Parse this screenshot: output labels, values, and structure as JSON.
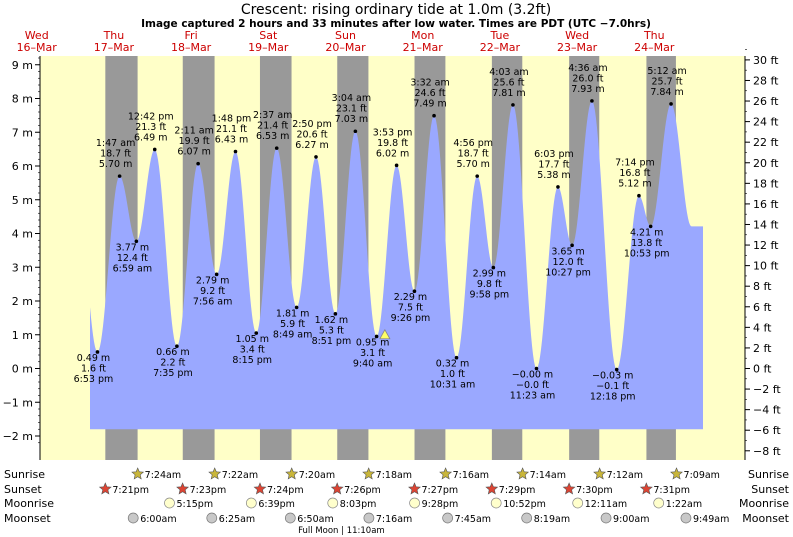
{
  "chart_data": {
    "type": "area",
    "title": "Crescent: rising  ordinary tide at 1.0m (3.2ft)",
    "subtitle": "Image captured 2 hours and 33 minutes after low water. Times are PDT (UTC −7.0hrs)",
    "x_unit": "days since 16-Mar 00:00 PDT",
    "ylim_m": [
      -2.4,
      9.6
    ],
    "y_ticks_m": [
      -2,
      -1,
      0,
      1,
      2,
      3,
      4,
      5,
      6,
      7,
      8,
      9
    ],
    "y_tick_labels_m": [
      "−2 m",
      "−1 m",
      "0 m",
      "1 m",
      "2 m",
      "3 m",
      "4 m",
      "5 m",
      "6 m",
      "7 m",
      "8 m",
      "9 m"
    ],
    "y_ticks_ft": [
      -8,
      -6,
      -4,
      -2,
      0,
      2,
      4,
      6,
      8,
      10,
      12,
      14,
      16,
      18,
      20,
      22,
      24,
      26,
      28,
      30
    ],
    "y_tick_labels_ft": [
      "−8 ft",
      "−6 ft",
      "−4 ft",
      "−2 ft",
      "0 ft",
      "2 ft",
      "4 ft",
      "6 ft",
      "8 ft",
      "10 ft",
      "12 ft",
      "14 ft",
      "16 ft",
      "18 ft",
      "20 ft",
      "22 ft",
      "24 ft",
      "26 ft",
      "28 ft",
      "30 ft"
    ],
    "days": [
      {
        "x": 0.0,
        "dow": "Wed",
        "date": "16–Mar"
      },
      {
        "x": 1.0,
        "dow": "Thu",
        "date": "17–Mar"
      },
      {
        "x": 2.0,
        "dow": "Fri",
        "date": "18–Mar"
      },
      {
        "x": 3.0,
        "dow": "Sat",
        "date": "19–Mar"
      },
      {
        "x": 4.0,
        "dow": "Sun",
        "date": "20–Mar"
      },
      {
        "x": 5.0,
        "dow": "Mon",
        "date": "21–Mar"
      },
      {
        "x": 6.0,
        "dow": "Tue",
        "date": "22–Mar"
      },
      {
        "x": 7.0,
        "dow": "Wed",
        "date": "23–Mar"
      },
      {
        "x": 8.0,
        "dow": "Thu",
        "date": "24–Mar"
      }
    ],
    "nights": [
      [
        0.889,
        1.307
      ],
      [
        1.892,
        2.304
      ],
      [
        2.892,
        3.301
      ],
      [
        3.893,
        4.297
      ],
      [
        4.894,
        5.294
      ],
      [
        5.896,
        6.29
      ],
      [
        6.897,
        7.287
      ],
      [
        7.898,
        8.28
      ]
    ],
    "tides": [
      {
        "x": 0.787,
        "m": 0.49,
        "time": "6:53 pm",
        "ft": "1.6 ft",
        "meters": "0.49 m",
        "type": "low"
      },
      {
        "x": 1.074,
        "m": 5.7,
        "time": "1:47 am",
        "ft": "18.7 ft",
        "meters": "5.70 m",
        "type": "high"
      },
      {
        "x": 1.291,
        "m": 3.77,
        "time": "6:59 am",
        "ft": "12.4 ft",
        "meters": "3.77 m",
        "type": "low"
      },
      {
        "x": 1.529,
        "m": 6.49,
        "time": "12:42 pm",
        "ft": "21.3 ft",
        "meters": "6.49 m",
        "type": "high"
      },
      {
        "x": 1.816,
        "m": 0.66,
        "time": "7:35 pm",
        "ft": "2.2 ft",
        "meters": "0.66 m",
        "type": "low"
      },
      {
        "x": 2.091,
        "m": 6.07,
        "time": "2:11 am",
        "ft": "19.9 ft",
        "meters": "6.07 m",
        "type": "high"
      },
      {
        "x": 2.331,
        "m": 2.79,
        "time": "7:56 am",
        "ft": "9.2 ft",
        "meters": "2.79 m",
        "type": "low"
      },
      {
        "x": 2.575,
        "m": 6.43,
        "time": "1:48 pm",
        "ft": "21.1 ft",
        "meters": "6.43 m",
        "type": "high"
      },
      {
        "x": 2.844,
        "m": 1.05,
        "time": "8:15 pm",
        "ft": "3.4 ft",
        "meters": "1.05 m",
        "type": "low"
      },
      {
        "x": 3.109,
        "m": 6.53,
        "time": "2:37 am",
        "ft": "21.4 ft",
        "meters": "6.53 m",
        "type": "high"
      },
      {
        "x": 3.367,
        "m": 1.81,
        "time": "8:49 am",
        "ft": "5.9 ft",
        "meters": "1.81 m",
        "type": "low"
      },
      {
        "x": 3.618,
        "m": 6.27,
        "time": "2:50 pm",
        "ft": "20.6 ft",
        "meters": "6.27 m",
        "type": "high"
      },
      {
        "x": 3.869,
        "m": 1.62,
        "time": "8:51 pm",
        "ft": "5.3 ft",
        "meters": "1.62 m",
        "type": "low"
      },
      {
        "x": 4.128,
        "m": 7.03,
        "time": "3:04 am",
        "ft": "23.1 ft",
        "meters": "7.03 m",
        "type": "high"
      },
      {
        "x": 4.403,
        "m": 0.95,
        "time": "9:40 am",
        "ft": "3.1 ft",
        "meters": "0.95 m",
        "type": "low"
      },
      {
        "x": 4.662,
        "m": 6.02,
        "time": "3:53 pm",
        "ft": "19.8 ft",
        "meters": "6.02 m",
        "type": "high"
      },
      {
        "x": 4.893,
        "m": 2.29,
        "time": "9:26 pm",
        "ft": "7.5 ft",
        "meters": "2.29 m",
        "type": "low"
      },
      {
        "x": 5.147,
        "m": 7.49,
        "time": "3:32 am",
        "ft": "24.6 ft",
        "meters": "7.49 m",
        "type": "high"
      },
      {
        "x": 5.438,
        "m": 0.32,
        "time": "10:31 am",
        "ft": "1.0 ft",
        "meters": "0.32 m",
        "type": "low"
      },
      {
        "x": 5.706,
        "m": 5.7,
        "time": "4:56 pm",
        "ft": "18.7 ft",
        "meters": "5.70 m",
        "type": "high"
      },
      {
        "x": 5.915,
        "m": 2.99,
        "time": "9:58 pm",
        "ft": "9.8 ft",
        "meters": "2.99 m",
        "type": "low"
      },
      {
        "x": 6.169,
        "m": 7.81,
        "time": "4:03 am",
        "ft": "25.6 ft",
        "meters": "7.81 m",
        "type": "high"
      },
      {
        "x": 6.474,
        "m": 0.0,
        "time": "11:23 am",
        "ft": "−0.0 ft",
        "meters": "−0.00 m",
        "type": "low"
      },
      {
        "x": 6.752,
        "m": 5.38,
        "time": "6:03 pm",
        "ft": "17.7 ft",
        "meters": "5.38 m",
        "type": "high"
      },
      {
        "x": 6.935,
        "m": 3.65,
        "time": "10:27 pm",
        "ft": "12.0 ft",
        "meters": "3.65 m",
        "type": "low"
      },
      {
        "x": 7.192,
        "m": 7.93,
        "time": "4:36 am",
        "ft": "26.0 ft",
        "meters": "7.93 m",
        "type": "high"
      },
      {
        "x": 7.513,
        "m": -0.03,
        "time": "12:18 pm",
        "ft": "−0.1 ft",
        "meters": "−0.03 m",
        "type": "low"
      },
      {
        "x": 7.801,
        "m": 5.12,
        "time": "7:14 pm",
        "ft": "16.8 ft",
        "meters": "5.12 m",
        "type": "high"
      },
      {
        "x": 7.953,
        "m": 4.21,
        "time": "10:53 pm",
        "ft": "13.8 ft",
        "meters": "4.21 m",
        "type": "low"
      },
      {
        "x": 8.217,
        "m": 7.84,
        "time": "5:12 am",
        "ft": "25.7 ft",
        "meters": "7.84 m",
        "type": "high"
      }
    ],
    "now": {
      "x": 4.51,
      "m": 1.0
    },
    "rows": {
      "sunrise_label": "Sunrise",
      "sunset_label": "Sunset",
      "moonrise_label": "Moonrise",
      "moonset_label": "Moonset"
    },
    "sunrise": [
      {
        "x": 1.308,
        "time": "7:24am"
      },
      {
        "x": 2.306,
        "time": "7:22am"
      },
      {
        "x": 3.303,
        "time": "7:20am"
      },
      {
        "x": 4.3,
        "time": "7:18am"
      },
      {
        "x": 5.297,
        "time": "7:16am"
      },
      {
        "x": 6.294,
        "time": "7:14am"
      },
      {
        "x": 7.292,
        "time": "7:12am"
      },
      {
        "x": 8.288,
        "time": "7:09am"
      }
    ],
    "sunset": [
      {
        "x": 0.889,
        "time": "7:21pm"
      },
      {
        "x": 1.89,
        "time": "7:23pm"
      },
      {
        "x": 2.892,
        "time": "7:24pm"
      },
      {
        "x": 3.892,
        "time": "7:26pm"
      },
      {
        "x": 4.894,
        "time": "7:27pm"
      },
      {
        "x": 5.895,
        "time": "7:29pm"
      },
      {
        "x": 6.896,
        "time": "7:30pm"
      },
      {
        "x": 7.897,
        "time": "7:31pm"
      }
    ],
    "moonrise": [
      {
        "x": 1.72,
        "time": "5:15pm"
      },
      {
        "x": 2.78,
        "time": "6:39pm"
      },
      {
        "x": 3.835,
        "time": "8:03pm"
      },
      {
        "x": 4.895,
        "time": "9:28pm"
      },
      {
        "x": 5.952,
        "time": "10:52pm"
      },
      {
        "x": 7.008,
        "time": "12:11am"
      },
      {
        "x": 8.057,
        "time": "1:22am"
      }
    ],
    "moonset": [
      {
        "x": 1.25,
        "time": "6:00am"
      },
      {
        "x": 2.268,
        "time": "6:25am"
      },
      {
        "x": 3.285,
        "time": "6:50am"
      },
      {
        "x": 4.303,
        "time": "7:16am"
      },
      {
        "x": 5.323,
        "time": "7:45am"
      },
      {
        "x": 6.347,
        "time": "8:19am"
      },
      {
        "x": 7.375,
        "time": "9:00am"
      },
      {
        "x": 8.41,
        "time": "9:49am"
      }
    ],
    "full_moon": {
      "x": 4.465,
      "text": "Full Moon | 11:10am"
    },
    "colors": {
      "day": "#ffffc8",
      "night": "#999999",
      "water": "#9aa8ff",
      "sunrise_star": "#c9b63a",
      "sunset_star": "#dd4433",
      "moonrise": "#ffffcc",
      "moonset": "#c8c8c8",
      "title": "#000000",
      "date": "#cc0000"
    }
  }
}
